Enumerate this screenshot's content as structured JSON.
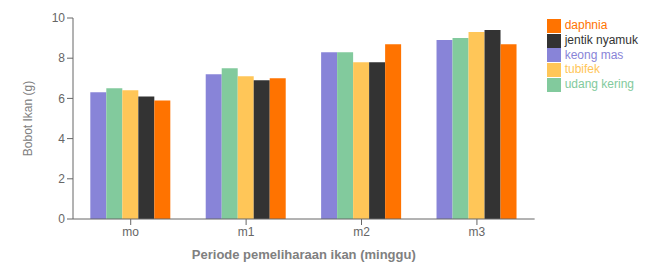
{
  "chart_data": {
    "type": "bar",
    "xlabel": "Periode pemeliharaan ikan (minggu)",
    "ylabel": "Bobot Ikan (g)",
    "categories": [
      "mo",
      "m1",
      "m2",
      "m3"
    ],
    "series": [
      {
        "name": "keong mas",
        "color": "#8884d8",
        "values": [
          6.3,
          7.2,
          8.3,
          8.9
        ]
      },
      {
        "name": "udang kering",
        "color": "#82ca9d",
        "values": [
          6.5,
          7.5,
          8.3,
          9.0
        ]
      },
      {
        "name": "tubifek",
        "color": "#ffc658",
        "values": [
          6.4,
          7.1,
          7.8,
          9.3
        ]
      },
      {
        "name": "jentik nyamuk",
        "color": "#333333",
        "values": [
          6.1,
          6.9,
          7.8,
          9.4
        ]
      },
      {
        "name": "daphnia",
        "color": "#ff7300",
        "values": [
          5.9,
          7.0,
          8.7,
          8.7
        ]
      }
    ],
    "ylim": [
      0,
      10
    ],
    "yticks": [
      0,
      2,
      4,
      6,
      8,
      10
    ],
    "grid": false,
    "legend": "right"
  }
}
